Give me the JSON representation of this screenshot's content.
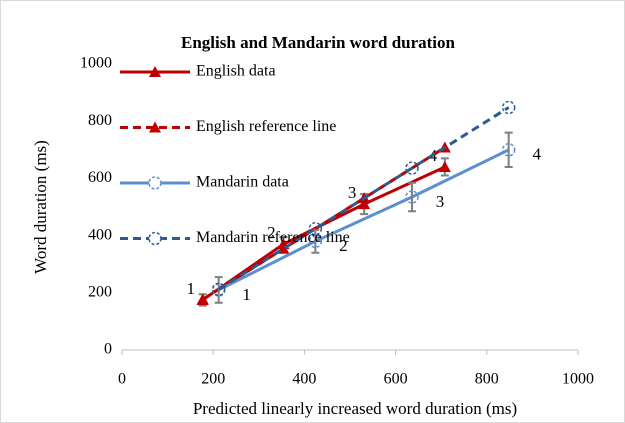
{
  "chart_data": {
    "type": "line",
    "title": "English and Mandarin word duration",
    "x_label": "Predicted linearly increased word duration (ms)",
    "y_label": "Word duration (ms)",
    "xlim": [
      0,
      1000
    ],
    "xticks": [
      0,
      200,
      400,
      600,
      800,
      1000
    ],
    "ylim": [
      0,
      1000
    ],
    "yticks": [
      0,
      200,
      400,
      600,
      800,
      1000
    ],
    "series": [
      {
        "name": "English data",
        "color": "#c00000",
        "dash": false,
        "marker": "triangle",
        "x": [
          177,
          354,
          531,
          708
        ],
        "values": [
          175,
          370,
          510,
          640
        ],
        "errors": [
          20,
          25,
          35,
          30
        ],
        "labels": [
          "1",
          "2",
          "3",
          "4"
        ]
      },
      {
        "name": "English reference line",
        "color": "#c00000",
        "dash": true,
        "marker": "triangle",
        "x": [
          177,
          354,
          531,
          708
        ],
        "values": [
          177,
          354,
          531,
          708
        ]
      },
      {
        "name": "Mandarin data",
        "color": "#5b8fd0",
        "dash": false,
        "marker": "circle",
        "x": [
          212,
          424,
          636,
          848
        ],
        "values": [
          210,
          380,
          535,
          700
        ],
        "errors": [
          45,
          40,
          50,
          60
        ],
        "labels": [
          "1",
          "2",
          "3",
          "4"
        ]
      },
      {
        "name": "Mandarin reference line",
        "color": "#2e5a8f",
        "dash": true,
        "marker": "circle",
        "x": [
          212,
          424,
          636,
          848
        ],
        "values": [
          212,
          424,
          636,
          848
        ]
      }
    ]
  }
}
